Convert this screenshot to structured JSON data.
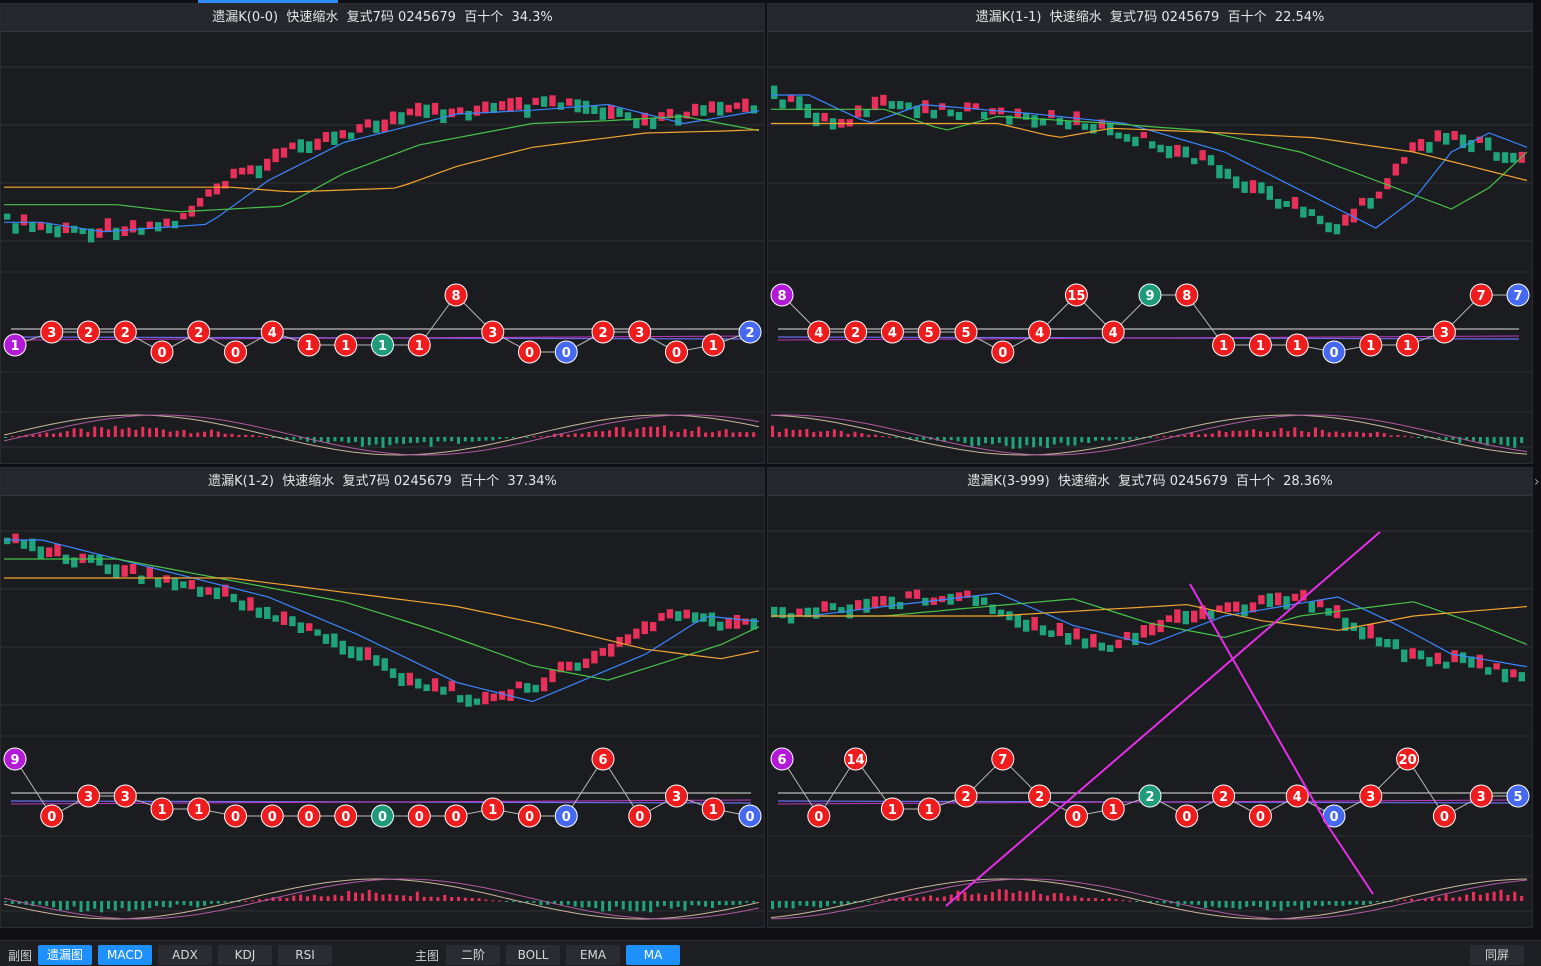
{
  "panels": [
    {
      "title": "遗漏K(0-0)  快速缩水  复式7码 0245679  百十个  34.3%",
      "cluster": [
        [
          "1",
          "p"
        ],
        [
          "3",
          "r"
        ],
        [
          "2",
          "r"
        ],
        [
          "2",
          "r"
        ],
        [
          "0",
          "r"
        ],
        [
          "2",
          "r"
        ],
        [
          "0",
          "r"
        ],
        [
          "4",
          "r"
        ],
        [
          "1",
          "r"
        ],
        [
          "1",
          "r"
        ],
        [
          "1",
          "g"
        ],
        [
          "1",
          "r"
        ],
        [
          "8",
          "r"
        ],
        [
          "3",
          "r"
        ],
        [
          "0",
          "r"
        ],
        [
          "0",
          "b"
        ],
        [
          "2",
          "r"
        ],
        [
          "3",
          "r"
        ],
        [
          "0",
          "r"
        ],
        [
          "1",
          "r"
        ],
        [
          "2",
          "b"
        ]
      ]
    },
    {
      "title": "遗漏K(1-1)  快速缩水  复式7码 0245679  百十个  22.54%",
      "cluster": [
        [
          "8",
          "p"
        ],
        [
          "4",
          "r"
        ],
        [
          "2",
          "r"
        ],
        [
          "4",
          "r"
        ],
        [
          "5",
          "r"
        ],
        [
          "5",
          "r"
        ],
        [
          "0",
          "r"
        ],
        [
          "4",
          "r"
        ],
        [
          "15",
          "r"
        ],
        [
          "4",
          "r"
        ],
        [
          "9",
          "g"
        ],
        [
          "8",
          "r"
        ],
        [
          "1",
          "r"
        ],
        [
          "1",
          "r"
        ],
        [
          "1",
          "r"
        ],
        [
          "0",
          "b"
        ],
        [
          "1",
          "r"
        ],
        [
          "1",
          "r"
        ],
        [
          "3",
          "r"
        ],
        [
          "7",
          "r"
        ],
        [
          "7",
          "b"
        ]
      ]
    },
    {
      "title": "遗漏K(1-2)  快速缩水  复式7码 0245679  百十个  37.34%",
      "cluster": [
        [
          "9",
          "p"
        ],
        [
          "0",
          "r"
        ],
        [
          "3",
          "r"
        ],
        [
          "3",
          "r"
        ],
        [
          "1",
          "r"
        ],
        [
          "1",
          "r"
        ],
        [
          "0",
          "r"
        ],
        [
          "0",
          "r"
        ],
        [
          "0",
          "r"
        ],
        [
          "0",
          "r"
        ],
        [
          "0",
          "g"
        ],
        [
          "0",
          "r"
        ],
        [
          "0",
          "r"
        ],
        [
          "1",
          "r"
        ],
        [
          "0",
          "r"
        ],
        [
          "0",
          "b"
        ],
        [
          "6",
          "r"
        ],
        [
          "0",
          "r"
        ],
        [
          "3",
          "r"
        ],
        [
          "1",
          "r"
        ],
        [
          "0",
          "b"
        ]
      ]
    },
    {
      "title": "遗漏K(3-999)  快速缩水  复式7码 0245679  百十个  28.36%",
      "cluster": [
        [
          "6",
          "p"
        ],
        [
          "0",
          "r"
        ],
        [
          "14",
          "r"
        ],
        [
          "1",
          "r"
        ],
        [
          "1",
          "r"
        ],
        [
          "2",
          "r"
        ],
        [
          "7",
          "r"
        ],
        [
          "2",
          "r"
        ],
        [
          "0",
          "r"
        ],
        [
          "1",
          "r"
        ],
        [
          "2",
          "g"
        ],
        [
          "0",
          "r"
        ],
        [
          "2",
          "r"
        ],
        [
          "0",
          "r"
        ],
        [
          "4",
          "r"
        ],
        [
          "0",
          "b"
        ],
        [
          "3",
          "r"
        ],
        [
          "20",
          "r"
        ],
        [
          "0",
          "r"
        ],
        [
          "3",
          "r"
        ],
        [
          "5",
          "b"
        ]
      ]
    }
  ],
  "bottom": {
    "sub_label": "副图",
    "sub_buttons": [
      "遗漏图",
      "MACD",
      "ADX",
      "KDJ",
      "RSI"
    ],
    "main_label": "主图",
    "main_buttons": [
      "二阶",
      "BOLL",
      "EMA",
      "MA"
    ],
    "right_button": "同屏"
  },
  "colors": {
    "up": "#e8305a",
    "down": "#1fa37a",
    "ma_short": "#3a86ff",
    "ma_mid": "#46c24a",
    "ma_long": "#f2a531",
    "bubble_red": "#ee1c1c",
    "bubble_blue": "#4569f0",
    "bubble_green": "#1f9b7c",
    "bubble_purple": "#b21ad8",
    "annotation": "#e62ee6",
    "accent": "#1e90ff"
  }
}
